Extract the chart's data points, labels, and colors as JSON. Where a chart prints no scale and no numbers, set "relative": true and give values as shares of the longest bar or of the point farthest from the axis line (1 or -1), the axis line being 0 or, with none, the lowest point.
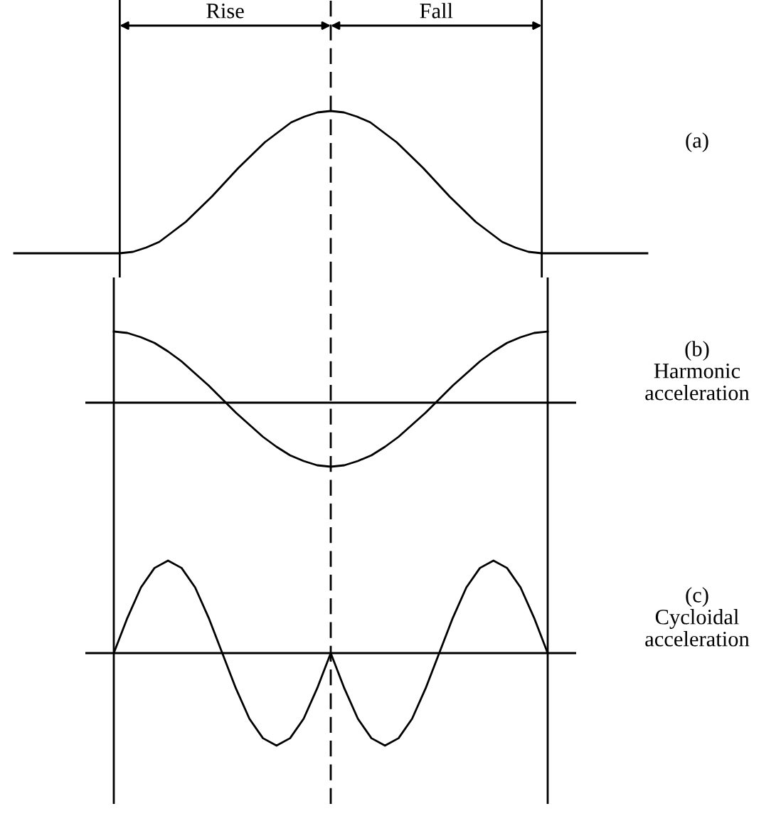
{
  "chart_data": [
    {
      "type": "line",
      "relative": true,
      "tick_labels": false,
      "categories": [
        null,
        null,
        null,
        null,
        null,
        null,
        null,
        null,
        null,
        null,
        null,
        null,
        null,
        null,
        null,
        null,
        null,
        null,
        null,
        null,
        null,
        null,
        null,
        null,
        null,
        null,
        null,
        null,
        null,
        null,
        null,
        null,
        null,
        null,
        null,
        null,
        null,
        null,
        null,
        null,
        null,
        null,
        null,
        null,
        null,
        null,
        null,
        null,
        null
      ],
      "series": [
        {
          "color": "#000000",
          "values": [
            0,
            0,
            0,
            0,
            0,
            0,
            0,
            0,
            0,
            0.01,
            0.04,
            0.08,
            0.15,
            0.22,
            0.31,
            0.4,
            0.5,
            0.6,
            0.69,
            0.78,
            0.85,
            0.92,
            0.96,
            0.99,
            1,
            0.99,
            0.96,
            0.92,
            0.85,
            0.78,
            0.69,
            0.6,
            0.5,
            0.4,
            0.31,
            0.22,
            0.15,
            0.08,
            0.04,
            0.01,
            0,
            0,
            0,
            0,
            0,
            0,
            0,
            0,
            0
          ]
        }
      ],
      "annotations": [
        "Rise",
        "Fall",
        "(a)"
      ]
    },
    {
      "type": "line",
      "annotations": [
        "(b)\nHarmonic\nacceleration"
      ],
      "relative": true,
      "tick_labels": false,
      "categories": [
        null,
        null,
        null,
        null,
        null,
        null,
        null,
        null,
        null,
        null,
        null,
        null,
        null,
        null,
        null,
        null,
        null,
        null,
        null,
        null,
        null,
        null,
        null,
        null,
        null,
        null,
        null,
        null,
        null,
        null,
        null,
        null,
        null
      ],
      "series": [
        {
          "color": "#000000",
          "values": [
            1,
            0.98,
            0.92,
            0.84,
            0.72,
            0.58,
            0.41,
            0.24,
            0.05,
            -0.14,
            -0.31,
            -0.48,
            -0.62,
            -0.74,
            -0.82,
            -0.88,
            -0.9,
            -0.88,
            -0.82,
            -0.74,
            -0.62,
            -0.48,
            -0.31,
            -0.14,
            0.05,
            0.24,
            0.41,
            0.58,
            0.72,
            0.84,
            0.92,
            0.98,
            1
          ]
        }
      ]
    },
    {
      "type": "line",
      "annotations": [
        "(c)\nCycloidal\nacceleration"
      ],
      "relative": true,
      "tick_labels": false,
      "categories": [
        null,
        null,
        null,
        null,
        null,
        null,
        null,
        null,
        null,
        null,
        null,
        null,
        null,
        null,
        null,
        null,
        null,
        null,
        null,
        null,
        null,
        null,
        null,
        null,
        null,
        null,
        null,
        null,
        null,
        null,
        null,
        null,
        null
      ],
      "series": [
        {
          "color": "#000000",
          "values": [
            0,
            0.38,
            0.71,
            0.92,
            1,
            0.92,
            0.71,
            0.38,
            0,
            -0.38,
            -0.71,
            -0.92,
            -1,
            -0.92,
            -0.71,
            -0.38,
            0,
            -0.38,
            -0.71,
            -0.92,
            -1,
            -0.92,
            -0.71,
            -0.38,
            0,
            0.38,
            0.71,
            0.92,
            1,
            0.92,
            0.71,
            0.38,
            0
          ]
        }
      ]
    }
  ]
}
